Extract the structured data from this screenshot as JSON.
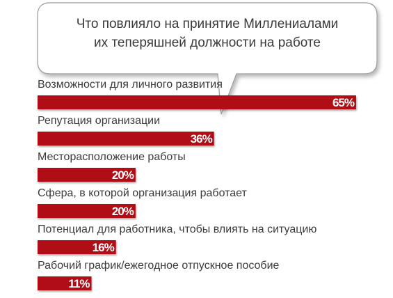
{
  "colors": {
    "bar": "#b01116",
    "bar_shadow": "#7a0a0d",
    "text": "#3a3a3a",
    "bubble_stroke": "#9a9a9a",
    "value_text": "#ffffff"
  },
  "chart_data": {
    "type": "bar",
    "orientation": "horizontal",
    "title_lines": [
      "Что повлияло на принятие Миллениалами",
      "их теперяшней должности на работе"
    ],
    "categories": [
      "Возможности для личного развития",
      "Репутация организации",
      "Месторасположение работы",
      "Сфера, в которой организация работает",
      "Потенциал для работника, чтобы влиять на ситуацию",
      "Рабочий график/ежегодное отпускное пособие"
    ],
    "values": [
      65,
      36,
      20,
      20,
      16,
      11
    ],
    "value_labels": [
      "65%",
      "36%",
      "20%",
      "20%",
      "16%",
      "11%"
    ],
    "value_format": "percent",
    "xlim": [
      0,
      65
    ],
    "grid": false,
    "legend": "none"
  }
}
